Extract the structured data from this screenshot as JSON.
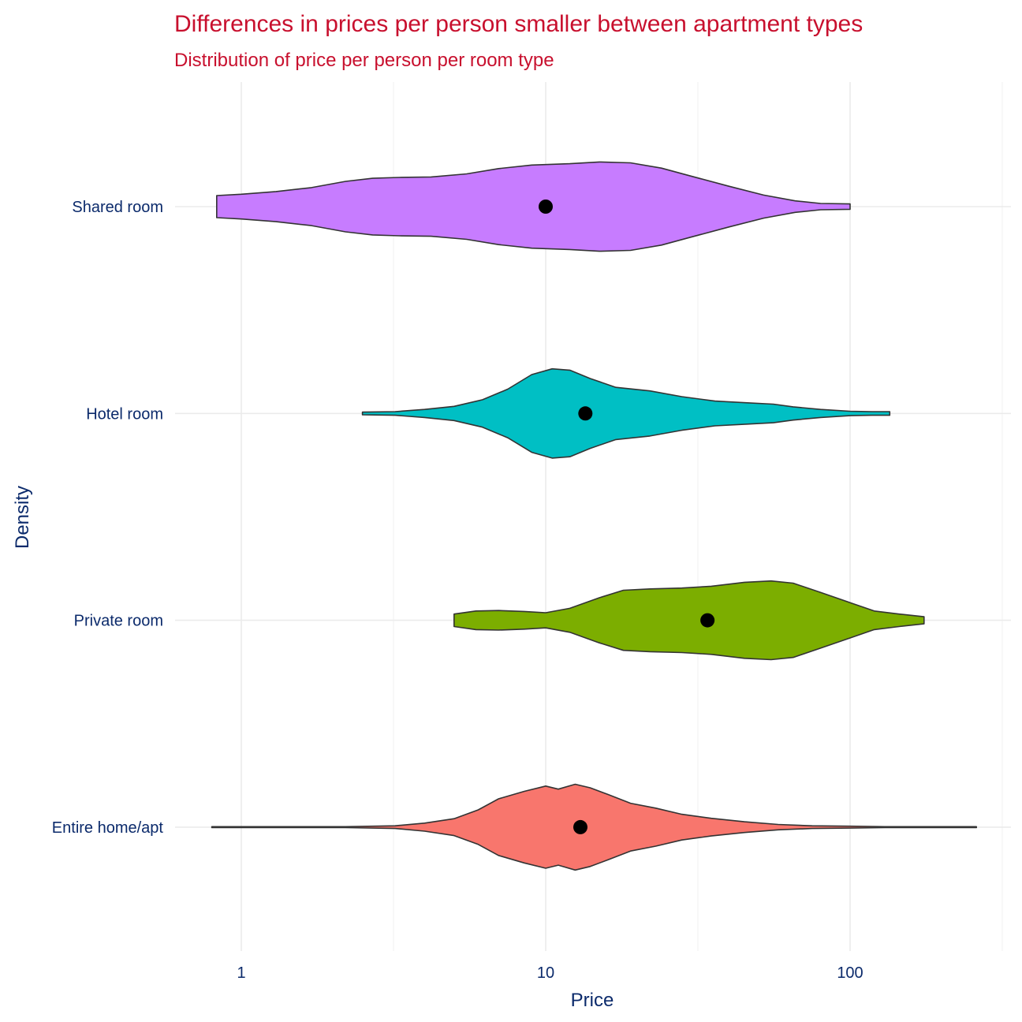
{
  "chart_data": {
    "type": "violin",
    "title": "Differences in prices per person smaller between apartment types",
    "subtitle": "Distribution of price per person per room type",
    "xlabel": "Price",
    "ylabel": "Density",
    "x_scale": "log10",
    "xlim": [
      0.75,
      250
    ],
    "x_ticks": [
      {
        "value": 1,
        "label": "1"
      },
      {
        "value": 10,
        "label": "10"
      },
      {
        "value": 100,
        "label": "100"
      }
    ],
    "grid": true,
    "legend": "none",
    "categories": [
      "Shared room",
      "Hotel room",
      "Private room",
      "Entire home/apt"
    ],
    "series": [
      {
        "category": "Shared room",
        "color": "#c77cff",
        "median": 10,
        "min": 0.83,
        "max": 100,
        "density": [
          [
            0.83,
            0.24
          ],
          [
            1.0,
            0.27
          ],
          [
            1.3,
            0.33
          ],
          [
            1.7,
            0.42
          ],
          [
            2.2,
            0.56
          ],
          [
            2.7,
            0.63
          ],
          [
            3.3,
            0.65
          ],
          [
            4.2,
            0.66
          ],
          [
            5.5,
            0.73
          ],
          [
            7.0,
            0.85
          ],
          [
            9.0,
            0.93
          ],
          [
            12.0,
            0.96
          ],
          [
            15.0,
            1.0
          ],
          [
            19.0,
            0.98
          ],
          [
            24.0,
            0.86
          ],
          [
            30.0,
            0.68
          ],
          [
            40.0,
            0.45
          ],
          [
            52.0,
            0.25
          ],
          [
            66.0,
            0.12
          ],
          [
            80.0,
            0.06
          ],
          [
            100.0,
            0.05
          ]
        ]
      },
      {
        "category": "Hotel room",
        "color": "#00bfc4",
        "median": 13.5,
        "min": 2.5,
        "max": 135,
        "density": [
          [
            2.5,
            0.02
          ],
          [
            3.2,
            0.03
          ],
          [
            4.0,
            0.08
          ],
          [
            5.0,
            0.15
          ],
          [
            6.2,
            0.3
          ],
          [
            7.5,
            0.54
          ],
          [
            9.0,
            0.87
          ],
          [
            10.5,
            1.0
          ],
          [
            12.0,
            0.97
          ],
          [
            14.0,
            0.78
          ],
          [
            17.0,
            0.58
          ],
          [
            22.0,
            0.5
          ],
          [
            28.0,
            0.37
          ],
          [
            36.0,
            0.27
          ],
          [
            46.0,
            0.23
          ],
          [
            56.0,
            0.2
          ],
          [
            65.0,
            0.14
          ],
          [
            80.0,
            0.08
          ],
          [
            100.0,
            0.04
          ],
          [
            118.0,
            0.03
          ],
          [
            135.0,
            0.03
          ]
        ]
      },
      {
        "category": "Private room",
        "color": "#7cae00",
        "median": 34,
        "min": 5,
        "max": 175,
        "density": [
          [
            5.0,
            0.13
          ],
          [
            5.9,
            0.2
          ],
          [
            7.0,
            0.21
          ],
          [
            8.5,
            0.19
          ],
          [
            10.0,
            0.16
          ],
          [
            12.0,
            0.26
          ],
          [
            15.0,
            0.5
          ],
          [
            18.0,
            0.67
          ],
          [
            22.0,
            0.7
          ],
          [
            28.0,
            0.72
          ],
          [
            35.0,
            0.76
          ],
          [
            45.0,
            0.85
          ],
          [
            55.0,
            0.88
          ],
          [
            65.0,
            0.83
          ],
          [
            80.0,
            0.62
          ],
          [
            100.0,
            0.39
          ],
          [
            120.0,
            0.2
          ],
          [
            145.0,
            0.13
          ],
          [
            175.0,
            0.07
          ]
        ]
      },
      {
        "category": "Entire home/apt",
        "color": "#f8766d",
        "median": 13,
        "min": 0.8,
        "max": 260,
        "density": [
          [
            0.8,
            0.0
          ],
          [
            2.2,
            0.0
          ],
          [
            3.2,
            0.02
          ],
          [
            4.0,
            0.08
          ],
          [
            5.0,
            0.18
          ],
          [
            6.0,
            0.38
          ],
          [
            7.0,
            0.63
          ],
          [
            8.5,
            0.8
          ],
          [
            10.0,
            0.92
          ],
          [
            11.0,
            0.85
          ],
          [
            12.5,
            0.96
          ],
          [
            14.0,
            0.88
          ],
          [
            16.0,
            0.73
          ],
          [
            19.0,
            0.53
          ],
          [
            23.0,
            0.42
          ],
          [
            28.0,
            0.28
          ],
          [
            35.0,
            0.19
          ],
          [
            45.0,
            0.11
          ],
          [
            58.0,
            0.05
          ],
          [
            75.0,
            0.02
          ],
          [
            100.0,
            0.01
          ],
          [
            130.0,
            0.0
          ],
          [
            260.0,
            0.0
          ]
        ]
      }
    ]
  }
}
